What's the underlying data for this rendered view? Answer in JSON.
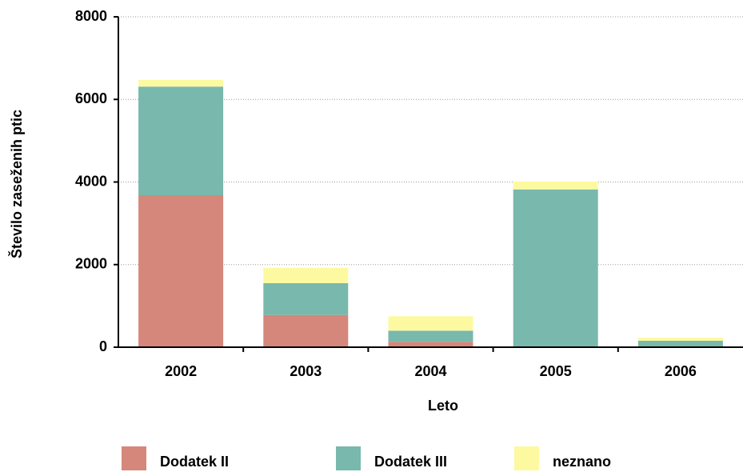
{
  "chart_data": {
    "type": "stacked_bar",
    "xlabel": "Leto",
    "ylabel": "Število zaseženih ptic",
    "categories": [
      "2002",
      "2003",
      "2004",
      "2005",
      "2006"
    ],
    "series": [
      {
        "name": "Dodatek II",
        "color": "#d4877a",
        "values": [
          3680,
          780,
          130,
          0,
          10
        ]
      },
      {
        "name": "Dodatek III",
        "color": "#79b8ad",
        "values": [
          2630,
          770,
          270,
          3820,
          145
        ]
      },
      {
        "name": "neznano",
        "color": "#fdf9a0",
        "values": [
          160,
          370,
          350,
          190,
          75
        ]
      }
    ],
    "ylim": [
      0,
      8000
    ],
    "yticks": [
      0,
      2000,
      4000,
      6000,
      8000
    ],
    "grid": true
  }
}
